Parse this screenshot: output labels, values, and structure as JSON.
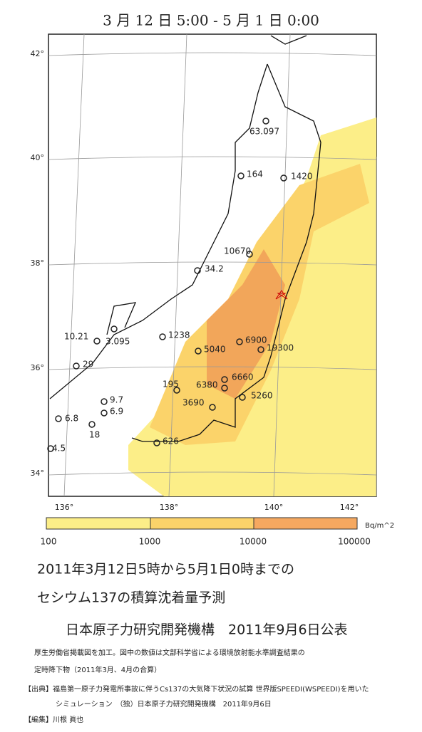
{
  "title": "3 月 12 日 5:00 - 5 月 1 日 0:00",
  "map": {
    "lat_labels": [
      "42°",
      "40°",
      "38°",
      "36°",
      "34°"
    ],
    "lon_labels": [
      "136°",
      "138°",
      "140°",
      "142°"
    ],
    "points": [
      "63.097",
      "164",
      "1420",
      "10670",
      "34.2",
      "1238",
      "6900",
      "5040",
      "19300",
      "10.21",
      "3.095",
      "29",
      "6660",
      "195",
      "6380",
      "5260",
      "3690",
      "9.7",
      "6.9",
      "6.8",
      "18",
      "4.5",
      "626"
    ]
  },
  "legend": {
    "unit": "Bq/m^2",
    "labels": [
      "100",
      "1000",
      "10000",
      "100000"
    ]
  },
  "caption": {
    "line1": "2011年3月12日5時から5月1日0時までの",
    "line2": "セシウム137の積算沈着量予測",
    "line3": "日本原子力研究開発機構　2011年9月6日公表"
  },
  "notes": [
    "厚生労働省掲載図を加工。図中の数値は文部科学省による環境放射能水準調査結果の",
    "定時降下物（2011年3月、4月の合算）"
  ],
  "source": [
    "【出典】福島第一原子力発電所事故に伴うCs137の大気降下状況の試算 世界版SPEEDI(WSPEEDI)を用いた",
    "シミュレーション　（独）日本原子力研究開発機構　2011年9月6日"
  ],
  "editor": "【編集】川根 眞也"
}
